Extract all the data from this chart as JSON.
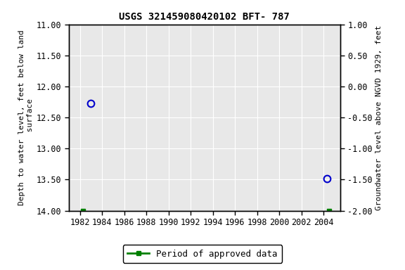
{
  "title": "USGS 321459080420102 BFT- 787",
  "ylabel_left": "Depth to water level, feet below land\n surface",
  "ylabel_right": "Groundwater level above NGVD 1929, feet",
  "xlim": [
    1981.0,
    2005.5
  ],
  "ylim_left": [
    14.0,
    11.0
  ],
  "ylim_right": [
    -2.0,
    1.0
  ],
  "xticks": [
    1982,
    1984,
    1986,
    1988,
    1990,
    1992,
    1994,
    1996,
    1998,
    2000,
    2002,
    2004
  ],
  "yticks_left": [
    11.0,
    11.5,
    12.0,
    12.5,
    13.0,
    13.5,
    14.0
  ],
  "yticks_right": [
    1.0,
    0.5,
    0.0,
    -0.5,
    -1.0,
    -1.5,
    -2.0
  ],
  "blue_points_x": [
    1983.0,
    2004.3
  ],
  "blue_points_y": [
    12.27,
    13.49
  ],
  "green_points_x": [
    1982.3,
    2004.5
  ],
  "green_points_y": [
    14.0,
    14.0
  ],
  "blue_color": "#0000cc",
  "green_color": "#008000",
  "background_color": "#ffffff",
  "plot_bg_color": "#e8e8e8",
  "grid_color": "#ffffff",
  "legend_label": "Period of approved data",
  "title_fontsize": 10,
  "axis_label_fontsize": 8,
  "tick_fontsize": 8.5
}
